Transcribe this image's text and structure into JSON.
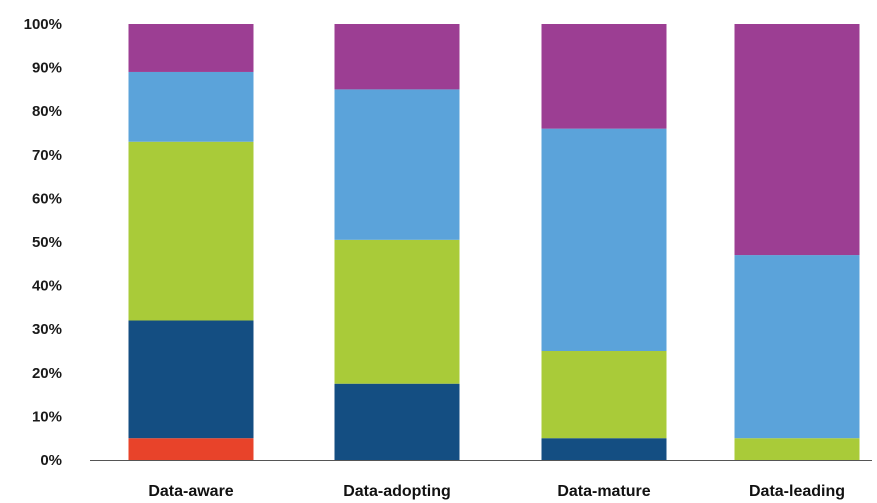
{
  "chart_data": {
    "type": "bar",
    "stacked": true,
    "categories": [
      "Data-aware",
      "Data-adopting",
      "Data-mature",
      "Data-leading"
    ],
    "series": [
      {
        "color": "#e8432a",
        "values": [
          5,
          0,
          0,
          0
        ]
      },
      {
        "color": "#144e82",
        "values": [
          27,
          17.5,
          5,
          0
        ]
      },
      {
        "color": "#a9cb39",
        "values": [
          41,
          33,
          20,
          5
        ]
      },
      {
        "color": "#5ba3da",
        "values": [
          16,
          34.5,
          51,
          42
        ]
      },
      {
        "color": "#9c3e93",
        "values": [
          11,
          15,
          24,
          53
        ]
      }
    ],
    "ylim": [
      0,
      100
    ],
    "yticks": [
      "0%",
      "10%",
      "20%",
      "30%",
      "40%",
      "50%",
      "60%",
      "70%",
      "80%",
      "90%",
      "100%"
    ],
    "grid": false,
    "legend": "none"
  }
}
